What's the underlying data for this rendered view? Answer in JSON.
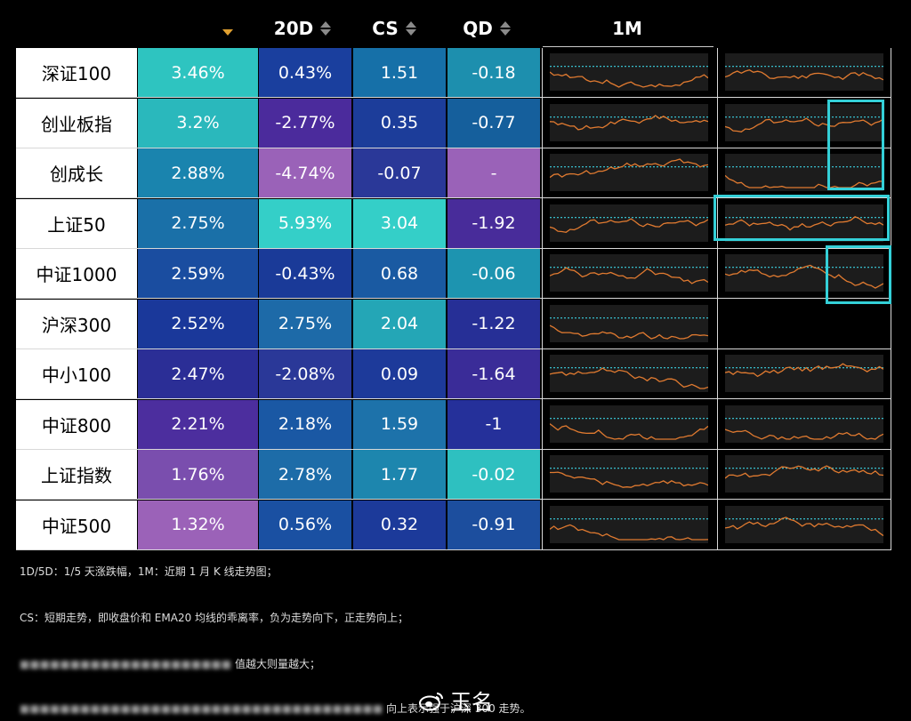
{
  "header": {
    "columns": [
      "",
      "20D",
      "CS",
      "QD",
      "1M"
    ]
  },
  "chart_data": {
    "type": "table",
    "columns": [
      "",
      "",
      "20D",
      "CS",
      "QD",
      "1M",
      ""
    ],
    "rows": [
      {
        "name": "深证100",
        "d1": "3.46%",
        "d20": "0.43%",
        "cs": "1.51",
        "qd": "-0.18",
        "colors": [
          "#2ec4c0",
          "#1a3f9e",
          "#1670a8",
          "#1d8fae"
        ]
      },
      {
        "name": "创业板指",
        "d1": "3.2%",
        "d20": "-2.77%",
        "cs": "0.35",
        "qd": "-0.77",
        "colors": [
          "#2ab8bc",
          "#4b2b9c",
          "#1c3d9a",
          "#155f9c"
        ]
      },
      {
        "name": "创成长",
        "d1": "2.88%",
        "d20": "-4.74%",
        "cs": "-0.07",
        "qd": "-",
        "colors": [
          "#1a84ae",
          "#9a62b8",
          "#2a3898",
          "#9a62b8"
        ]
      },
      {
        "name": "上证50",
        "d1": "2.75%",
        "d20": "5.93%",
        "cs": "3.04",
        "qd": "-1.92",
        "colors": [
          "#1a70a8",
          "#34cfc8",
          "#34cfc8",
          "#482c9a"
        ]
      },
      {
        "name": "中证1000",
        "d1": "2.59%",
        "d20": "-0.43%",
        "cs": "0.68",
        "qd": "-0.06",
        "colors": [
          "#1a4da0",
          "#1a3a98",
          "#1a5aa2",
          "#1d94b0"
        ]
      },
      {
        "name": "沪深300",
        "d1": "2.52%",
        "d20": "2.75%",
        "cs": "2.04",
        "qd": "-1.22",
        "colors": [
          "#1a389a",
          "#1d6aa8",
          "#24a6b6",
          "#262f96"
        ]
      },
      {
        "name": "中小100",
        "d1": "2.47%",
        "d20": "-2.08%",
        "cs": "0.09",
        "qd": "-1.64",
        "colors": [
          "#2b2e96",
          "#2a3898",
          "#1d3a9a",
          "#3a2c98"
        ]
      },
      {
        "name": "中证800",
        "d1": "2.21%",
        "d20": "2.18%",
        "cs": "1.59",
        "qd": "-1",
        "colors": [
          "#4c2e9e",
          "#1a58a4",
          "#1d72aa",
          "#25309a"
        ]
      },
      {
        "name": "上证指数",
        "d1": "1.76%",
        "d20": "2.78%",
        "cs": "1.77",
        "qd": "-0.02",
        "colors": [
          "#7a4eae",
          "#1d6ca8",
          "#1d86ae",
          "#2ec0c0"
        ]
      },
      {
        "name": "中证500",
        "d1": "1.32%",
        "d20": "0.56%",
        "cs": "0.32",
        "qd": "-0.91",
        "colors": [
          "#9b62b8",
          "#1a50a2",
          "#1c3a9a",
          "#1c4e9e"
        ]
      }
    ]
  },
  "notes": {
    "line1": "1D/5D：1/5 天涨跌幅，1M：近期 1 月 K 线走势图；",
    "line2": "CS：短期走势，即收盘价和 EMA20 均线的乖离率，负为走势向下，正走势向上；",
    "line3": "值越大则量越大；",
    "line4": "向上表示强于沪深 300 走势。"
  },
  "watermark": {
    "text": "玉名"
  },
  "colors": {
    "highlight": "#34d0d8",
    "spark_line": "#e07a30",
    "spark_ref": "#3bd0e0"
  }
}
